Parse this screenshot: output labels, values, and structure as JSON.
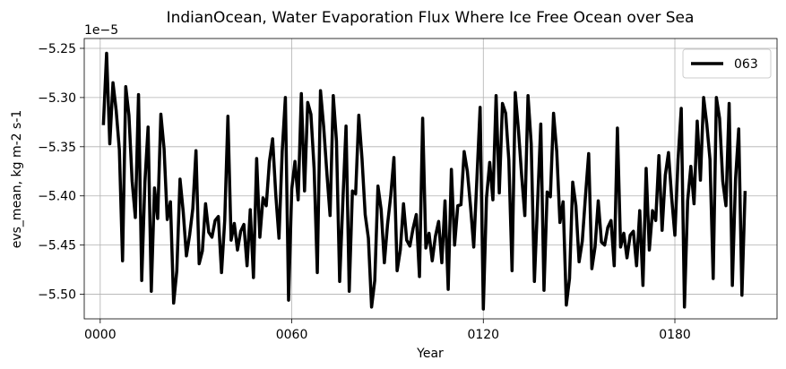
{
  "chart_data": {
    "type": "line",
    "title": "IndianOcean, Water Evaporation Flux Where Ice Free Ocean over Sea",
    "xlabel": "Year",
    "ylabel": "evs_mean, kg m-2 s-1",
    "y_offset_label": "1e−5",
    "xlim": [
      -5,
      212
    ],
    "ylim": [
      -5.525,
      -5.24
    ],
    "x_ticks": [
      0,
      60,
      120,
      180
    ],
    "x_tick_labels": [
      "0000",
      "0060",
      "0120",
      "0180"
    ],
    "y_ticks": [
      -5.5,
      -5.45,
      -5.4,
      -5.35,
      -5.3,
      -5.25
    ],
    "y_tick_labels": [
      "−5.50",
      "−5.45",
      "−5.40",
      "−5.35",
      "−5.30",
      "−5.25"
    ],
    "grid": true,
    "legend_position": "top-right",
    "series": [
      {
        "name": "063",
        "color": "#000000",
        "x_start": 1,
        "values": [
          -5.328,
          -5.255,
          -5.347,
          -5.285,
          -5.313,
          -5.353,
          -5.466,
          -5.289,
          -5.318,
          -5.385,
          -5.422,
          -5.297,
          -5.486,
          -5.386,
          -5.33,
          -5.497,
          -5.392,
          -5.423,
          -5.317,
          -5.352,
          -5.424,
          -5.406,
          -5.509,
          -5.476,
          -5.383,
          -5.416,
          -5.461,
          -5.44,
          -5.413,
          -5.354,
          -5.469,
          -5.456,
          -5.408,
          -5.437,
          -5.442,
          -5.425,
          -5.421,
          -5.478,
          -5.425,
          -5.319,
          -5.445,
          -5.428,
          -5.455,
          -5.436,
          -5.429,
          -5.471,
          -5.414,
          -5.483,
          -5.362,
          -5.442,
          -5.402,
          -5.41,
          -5.365,
          -5.342,
          -5.399,
          -5.443,
          -5.355,
          -5.3,
          -5.506,
          -5.393,
          -5.365,
          -5.404,
          -5.296,
          -5.395,
          -5.305,
          -5.317,
          -5.372,
          -5.478,
          -5.293,
          -5.33,
          -5.377,
          -5.42,
          -5.298,
          -5.344,
          -5.487,
          -5.406,
          -5.329,
          -5.497,
          -5.395,
          -5.398,
          -5.318,
          -5.362,
          -5.419,
          -5.443,
          -5.513,
          -5.486,
          -5.39,
          -5.414,
          -5.468,
          -5.429,
          -5.4,
          -5.361,
          -5.476,
          -5.455,
          -5.408,
          -5.445,
          -5.451,
          -5.433,
          -5.419,
          -5.482,
          -5.321,
          -5.453,
          -5.438,
          -5.466,
          -5.441,
          -5.426,
          -5.468,
          -5.405,
          -5.495,
          -5.373,
          -5.45,
          -5.41,
          -5.409,
          -5.355,
          -5.375,
          -5.411,
          -5.452,
          -5.382,
          -5.31,
          -5.515,
          -5.402,
          -5.366,
          -5.404,
          -5.298,
          -5.397,
          -5.306,
          -5.316,
          -5.364,
          -5.476,
          -5.295,
          -5.333,
          -5.379,
          -5.42,
          -5.298,
          -5.347,
          -5.487,
          -5.407,
          -5.327,
          -5.496,
          -5.396,
          -5.401,
          -5.316,
          -5.355,
          -5.427,
          -5.406,
          -5.511,
          -5.484,
          -5.386,
          -5.41,
          -5.467,
          -5.446,
          -5.4,
          -5.357,
          -5.474,
          -5.452,
          -5.405,
          -5.447,
          -5.45,
          -5.432,
          -5.425,
          -5.471,
          -5.331,
          -5.452,
          -5.438,
          -5.463,
          -5.44,
          -5.436,
          -5.471,
          -5.415,
          -5.491,
          -5.372,
          -5.455,
          -5.415,
          -5.425,
          -5.359,
          -5.435,
          -5.379,
          -5.356,
          -5.402,
          -5.44,
          -5.363,
          -5.311,
          -5.513,
          -5.405,
          -5.37,
          -5.408,
          -5.324,
          -5.384,
          -5.3,
          -5.327,
          -5.363,
          -5.484,
          -5.3,
          -5.321,
          -5.385,
          -5.41,
          -5.306,
          -5.491,
          -5.383,
          -5.332,
          -5.501,
          -5.395
        ]
      }
    ]
  }
}
